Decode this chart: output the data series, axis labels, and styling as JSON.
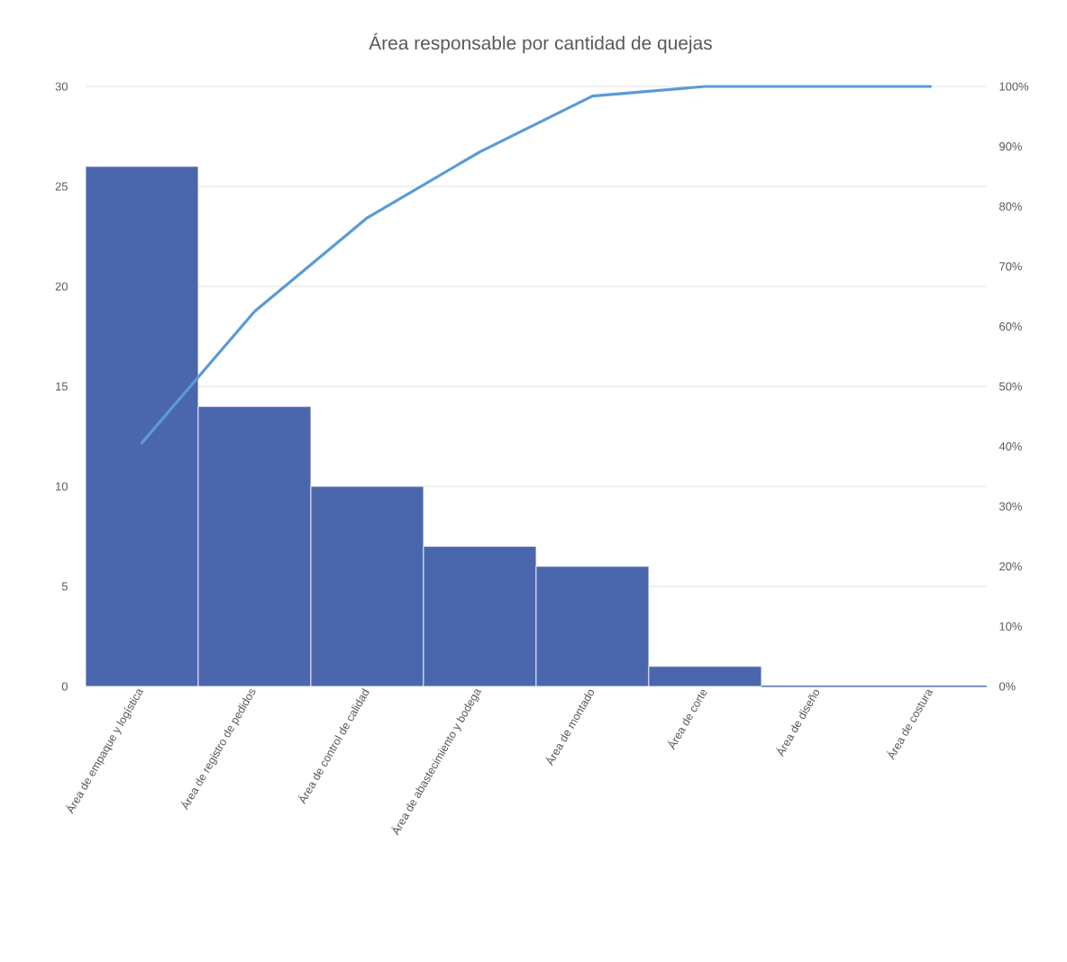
{
  "chart_data": {
    "type": "bar",
    "title": "Área responsable por cantidad de quejas",
    "categories": [
      "Área de empaque y logística",
      "Área de registro de pedidos",
      "Área de control de calidad",
      "Área de abastecimiento y bodega",
      "Área de montado",
      "Área de corte",
      "Área de diseño",
      "Área de costura"
    ],
    "series": [
      {
        "color": "#4a66ac",
        "values": [
          26,
          14,
          10,
          7,
          6,
          1,
          0,
          0
        ]
      },
      {
        "type": "line",
        "axis": "y2",
        "color": "#5b9bd5",
        "values": [
          40.6,
          62.5,
          78.1,
          89.1,
          98.4,
          100,
          100,
          100
        ]
      }
    ],
    "ylim": [
      0,
      30
    ],
    "yticks": [
      0,
      5,
      10,
      15,
      20,
      25,
      30
    ],
    "y2lim": [
      0,
      100
    ],
    "y2ticks": [
      {
        "value": 0,
        "label": "0%"
      },
      {
        "value": 10,
        "label": "10%"
      },
      {
        "value": 20,
        "label": "20%"
      },
      {
        "value": 30,
        "label": "30%"
      },
      {
        "value": 40,
        "label": "40%"
      },
      {
        "value": 50,
        "label": "50%"
      },
      {
        "value": 60,
        "label": "60%"
      },
      {
        "value": 70,
        "label": "70%"
      },
      {
        "value": 80,
        "label": "80%"
      },
      {
        "value": 90,
        "label": "90%"
      },
      {
        "value": 100,
        "label": "100%"
      }
    ],
    "grid": "y"
  }
}
